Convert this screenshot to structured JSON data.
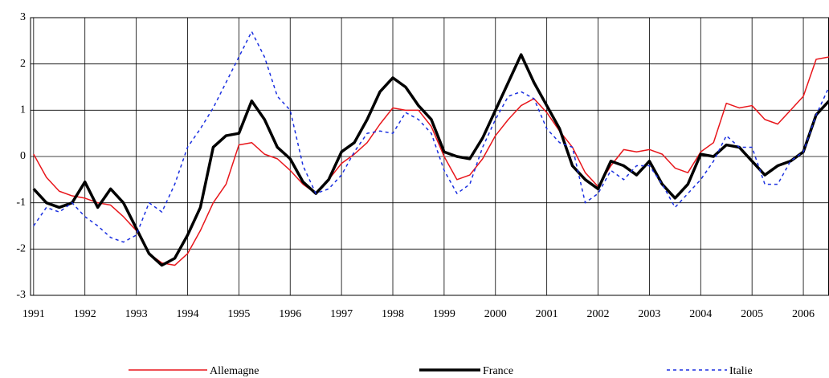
{
  "chart_data": {
    "type": "line",
    "x": [
      1991,
      1991.25,
      1991.5,
      1991.75,
      1992,
      1992.25,
      1992.5,
      1992.75,
      1993,
      1993.25,
      1993.5,
      1993.75,
      1994,
      1994.25,
      1994.5,
      1994.75,
      1995,
      1995.25,
      1995.5,
      1995.75,
      1996,
      1996.25,
      1996.5,
      1996.75,
      1997,
      1997.25,
      1997.5,
      1997.75,
      1998,
      1998.25,
      1998.5,
      1998.75,
      1999,
      1999.25,
      1999.5,
      1999.75,
      2000,
      2000.25,
      2000.5,
      2000.75,
      2001,
      2001.25,
      2001.5,
      2001.75,
      2002,
      2002.25,
      2002.5,
      2002.75,
      2003,
      2003.25,
      2003.5,
      2003.75,
      2004,
      2004.25,
      2004.5,
      2004.75,
      2005,
      2005.25,
      2005.5,
      2005.75,
      2006,
      2006.25,
      2006.5
    ],
    "series": [
      {
        "name": "Allemagne",
        "color": "#e8161b",
        "line_style": "solid",
        "line_width": 1.5,
        "values": [
          0.05,
          -0.45,
          -0.75,
          -0.85,
          -0.9,
          -1.0,
          -1.05,
          -1.3,
          -1.6,
          -2.1,
          -2.3,
          -2.35,
          -2.1,
          -1.6,
          -1.0,
          -0.6,
          0.25,
          0.3,
          0.05,
          -0.05,
          -0.3,
          -0.6,
          -0.8,
          -0.5,
          -0.15,
          0.05,
          0.3,
          0.7,
          1.05,
          1.0,
          1.0,
          0.65,
          0.0,
          -0.5,
          -0.4,
          -0.05,
          0.45,
          0.8,
          1.1,
          1.25,
          0.95,
          0.55,
          0.2,
          -0.35,
          -0.65,
          -0.2,
          0.15,
          0.1,
          0.15,
          0.05,
          -0.25,
          -0.35,
          0.1,
          0.3,
          1.15,
          1.05,
          1.1,
          0.8,
          0.7,
          1.0,
          1.3,
          2.1,
          2.15
        ]
      },
      {
        "name": "France",
        "color": "#000000",
        "line_style": "solid",
        "line_width": 3.5,
        "values": [
          -0.7,
          -1.0,
          -1.1,
          -1.0,
          -0.55,
          -1.1,
          -0.7,
          -1.0,
          -1.55,
          -2.1,
          -2.35,
          -2.2,
          -1.7,
          -1.1,
          0.2,
          0.45,
          0.5,
          1.2,
          0.8,
          0.2,
          -0.05,
          -0.55,
          -0.8,
          -0.5,
          0.1,
          0.3,
          0.8,
          1.4,
          1.7,
          1.5,
          1.1,
          0.8,
          0.1,
          0.0,
          -0.05,
          0.4,
          1.0,
          1.6,
          2.2,
          1.6,
          1.1,
          0.6,
          -0.2,
          -0.5,
          -0.7,
          -0.1,
          -0.2,
          -0.4,
          -0.1,
          -0.6,
          -0.9,
          -0.6,
          0.05,
          0.0,
          0.25,
          0.2,
          -0.1,
          -0.4,
          -0.2,
          -0.1,
          0.1,
          0.9,
          1.2
        ]
      },
      {
        "name": "Italie",
        "color": "#1a2fe0",
        "line_style": "dashed",
        "line_width": 1.5,
        "values": [
          -1.5,
          -1.1,
          -1.2,
          -1.0,
          -1.3,
          -1.5,
          -1.75,
          -1.85,
          -1.7,
          -1.0,
          -1.2,
          -0.6,
          0.2,
          0.6,
          1.05,
          1.6,
          2.15,
          2.7,
          2.15,
          1.3,
          1.0,
          -0.2,
          -0.8,
          -0.7,
          -0.4,
          0.1,
          0.5,
          0.55,
          0.5,
          0.95,
          0.8,
          0.5,
          -0.3,
          -0.8,
          -0.6,
          0.2,
          0.8,
          1.3,
          1.4,
          1.25,
          0.6,
          0.3,
          0.2,
          -1.0,
          -0.8,
          -0.3,
          -0.5,
          -0.2,
          -0.2,
          -0.6,
          -1.1,
          -0.8,
          -0.5,
          -0.1,
          0.45,
          0.2,
          0.2,
          -0.6,
          -0.6,
          -0.1,
          0.1,
          0.9,
          1.5
        ]
      }
    ],
    "xlim": [
      1990.94,
      2006.5
    ],
    "xticks": [
      1991,
      1992,
      1993,
      1994,
      1995,
      1996,
      1997,
      1998,
      1999,
      2000,
      2001,
      2002,
      2003,
      2004,
      2005,
      2006
    ],
    "ylim": [
      -3,
      3
    ],
    "yticks": [
      -3,
      -2,
      -1,
      0,
      1,
      2,
      3
    ],
    "grid": true,
    "legend": "bottom"
  }
}
